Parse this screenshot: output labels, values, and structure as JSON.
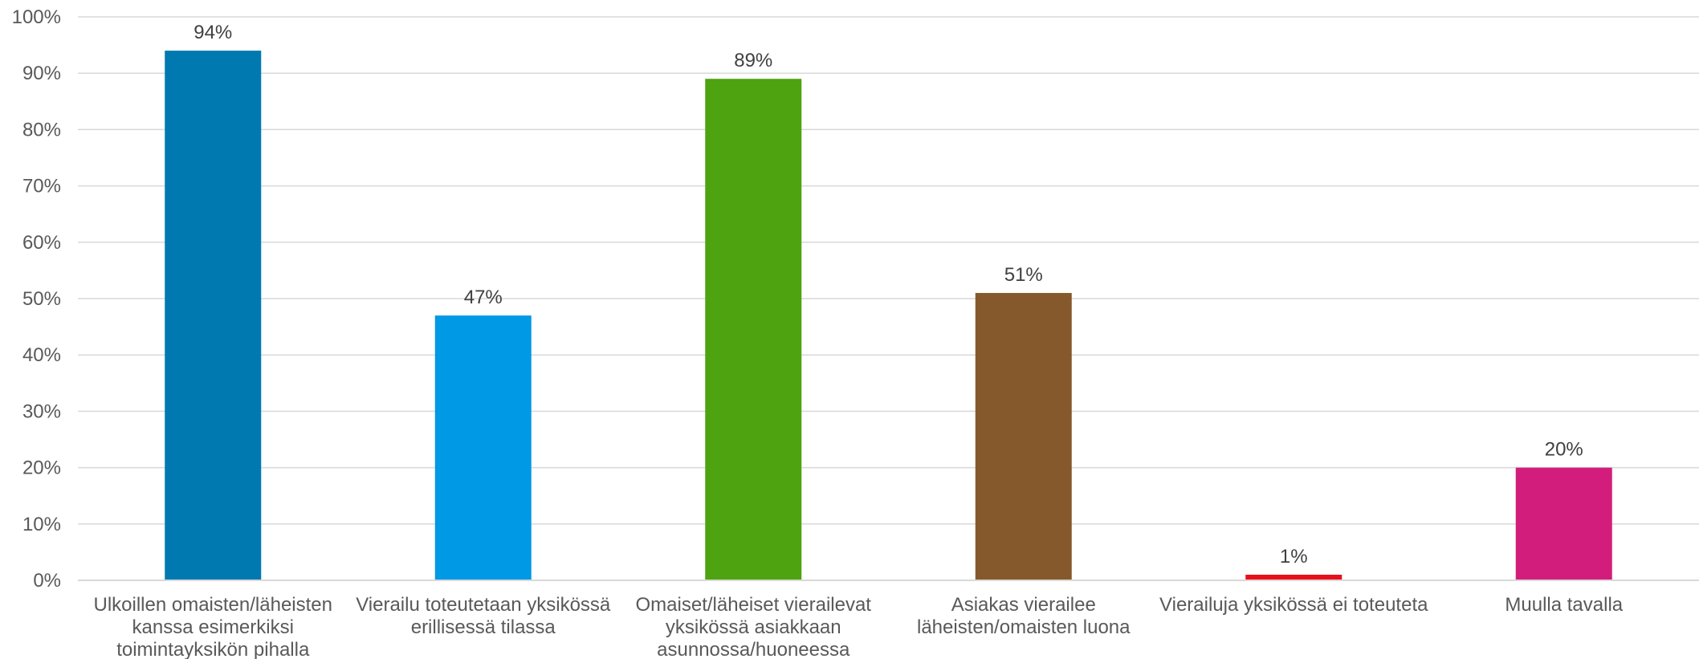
{
  "chart_data": {
    "type": "bar",
    "title": "",
    "xlabel": "",
    "ylabel": "",
    "ylim": [
      0,
      100
    ],
    "y_ticks": [
      "0%",
      "10%",
      "20%",
      "30%",
      "40%",
      "50%",
      "60%",
      "70%",
      "80%",
      "90%",
      "100%"
    ],
    "grid": true,
    "legend": "none",
    "categories": [
      [
        "Ulkoillen omaisten/läheisten",
        "kanssa esimerkiksi",
        "toimintayksikön pihalla"
      ],
      [
        "Vierailu toteutetaan yksikössä",
        "erillisessä tilassa"
      ],
      [
        "Omaiset/läheiset vierailevat",
        "yksikössä asiakkaan",
        "asunnossa/huoneessa"
      ],
      [
        "Asiakas vierailee",
        "läheisten/omaisten luona"
      ],
      [
        "Vierailuja yksikössä ei toteuteta"
      ],
      [
        "Muulla tavalla"
      ]
    ],
    "values": [
      94,
      47,
      89,
      51,
      1,
      20
    ],
    "data_labels": [
      "94%",
      "47%",
      "89%",
      "51%",
      "1%",
      "20%"
    ],
    "colors": [
      "#0079b0",
      "#0099e6",
      "#4ea311",
      "#85592b",
      "#e8101d",
      "#d21d7c"
    ]
  }
}
